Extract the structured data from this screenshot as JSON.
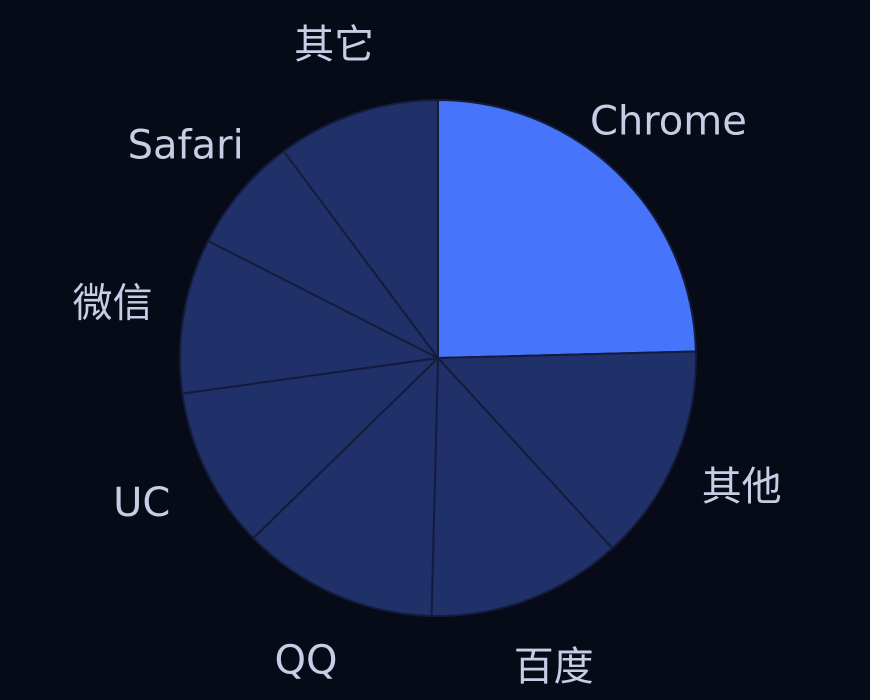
{
  "chart_data": {
    "type": "pie",
    "title": "",
    "start_angle_deg": 0,
    "direction": "clockwise",
    "colors": {
      "background": "#070b17",
      "highlight": "#4674fb",
      "default": "#203069",
      "border": "#141c3c",
      "label": "#c8cce4"
    },
    "slices": [
      {
        "label": "Chrome",
        "value": 24.6,
        "highlight": true
      },
      {
        "label": "其他",
        "value": 13.6,
        "highlight": false
      },
      {
        "label": "百度",
        "value": 12.2,
        "highlight": false
      },
      {
        "label": "QQ",
        "value": 12.3,
        "highlight": false
      },
      {
        "label": "UC",
        "value": 10.1,
        "highlight": false
      },
      {
        "label": "微信",
        "value": 9.7,
        "highlight": false
      },
      {
        "label": "Safari",
        "value": 7.3,
        "highlight": false
      },
      {
        "label": "其它",
        "value": 10.2,
        "highlight": false
      }
    ]
  }
}
